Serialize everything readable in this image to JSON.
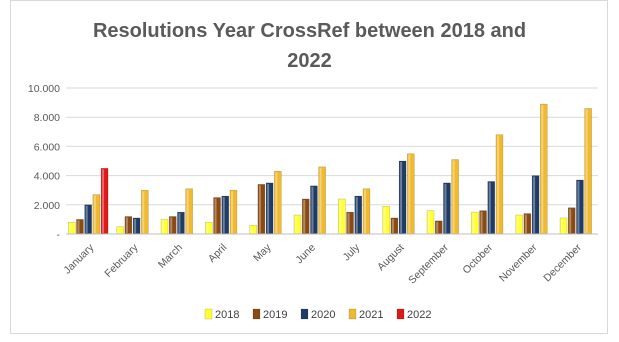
{
  "chart_data": {
    "type": "bar",
    "title_line1": "Resolutions  Year CrossRef between 2018 and",
    "title_line2": "2022",
    "categories": [
      "January",
      "February",
      "March",
      "April",
      "May",
      "June",
      "July",
      "August",
      "September",
      "October",
      "November",
      "December"
    ],
    "y_ticks": [
      "-",
      "2.000",
      "4.000",
      "6.000",
      "8.000",
      "10.000"
    ],
    "ylim": [
      0,
      10000
    ],
    "grid": true,
    "legend_position": "bottom",
    "series": [
      {
        "name": "2018",
        "color": "#ffff33",
        "values": [
          800,
          500,
          1000,
          800,
          600,
          1300,
          2400,
          1900,
          1600,
          1500,
          1300,
          1100
        ]
      },
      {
        "name": "2019",
        "color": "#8b4a12",
        "values": [
          1000,
          1200,
          1200,
          2500,
          3400,
          2400,
          1500,
          1100,
          900,
          1600,
          1400,
          1800
        ]
      },
      {
        "name": "2020",
        "color": "#1f3c66",
        "values": [
          2000,
          1100,
          1500,
          2600,
          3500,
          3300,
          2600,
          5000,
          3500,
          3600,
          4000,
          3700
        ]
      },
      {
        "name": "2021",
        "color": "#f0b92e",
        "values": [
          2700,
          3000,
          3100,
          3000,
          4300,
          4600,
          3100,
          5500,
          5100,
          6800,
          8900,
          8600
        ]
      },
      {
        "name": "2022",
        "color": "#e01818",
        "values": [
          4500,
          null,
          null,
          null,
          null,
          null,
          null,
          null,
          null,
          null,
          null,
          null
        ]
      }
    ]
  }
}
